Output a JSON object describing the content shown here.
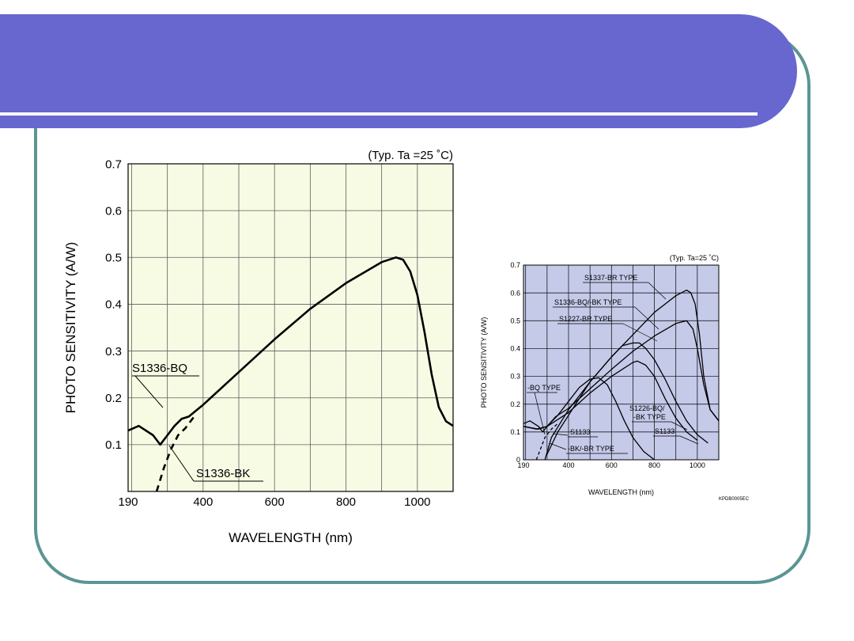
{
  "slide": {
    "title": ""
  },
  "colors": {
    "frame": "#5b9594",
    "band": "#6767cf",
    "left_plot_bg": "#f8fbe4",
    "right_plot_bg": "#c5cae9",
    "curve": "#000000"
  },
  "chart_data": [
    {
      "type": "line",
      "title": "(Typ. Ta =25 ˚C)",
      "xlabel": "WAVELENGTH (nm)",
      "ylabel": "PHOTO SENSITIVITY (A/W)",
      "xlim": [
        190,
        1100
      ],
      "ylim": [
        0,
        0.7
      ],
      "xticks": [
        190,
        400,
        600,
        800,
        1000
      ],
      "yticks": [
        0.1,
        0.2,
        0.3,
        0.4,
        0.5,
        0.6,
        0.7
      ],
      "grid": true,
      "series": [
        {
          "name": "S1336-BQ",
          "style": "solid",
          "x": [
            190,
            220,
            260,
            280,
            300,
            320,
            340,
            360,
            400,
            500,
            600,
            700,
            800,
            900,
            940,
            960,
            980,
            1000,
            1020,
            1040,
            1060,
            1080,
            1100
          ],
          "y": [
            0.13,
            0.14,
            0.12,
            0.1,
            0.12,
            0.14,
            0.155,
            0.16,
            0.185,
            0.255,
            0.325,
            0.39,
            0.445,
            0.49,
            0.5,
            0.495,
            0.47,
            0.42,
            0.34,
            0.25,
            0.18,
            0.15,
            0.14
          ]
        },
        {
          "name": "S1336-BK",
          "style": "dashed",
          "x": [
            270,
            290,
            310,
            330,
            350,
            370,
            380
          ],
          "y": [
            0.0,
            0.05,
            0.09,
            0.12,
            0.135,
            0.155,
            0.165
          ]
        }
      ],
      "annotations": [
        {
          "text": "S1336-BQ",
          "target_x": 300,
          "target_y": 0.125
        },
        {
          "text": "S1336-BK",
          "target_x": 320,
          "target_y": 0.1
        }
      ]
    },
    {
      "type": "line",
      "title": "(Typ. Ta=25 ˚C)",
      "xlabel": "WAVELENGTH (nm)",
      "ylabel": "PHOTO SENSITIVITY (A/W)",
      "xlim": [
        190,
        1100
      ],
      "ylim": [
        0,
        0.7
      ],
      "xticks": [
        190,
        400,
        600,
        800,
        1000
      ],
      "yticks": [
        0,
        0.1,
        0.2,
        0.3,
        0.4,
        0.5,
        0.6,
        0.7
      ],
      "grid": true,
      "footnote": "KPDB0005EC",
      "series": [
        {
          "name": "S1337-BR TYPE",
          "style": "solid",
          "x": [
            290,
            320,
            360,
            400,
            500,
            600,
            700,
            800,
            900,
            950,
            970,
            990,
            1010,
            1030,
            1060,
            1100
          ],
          "y": [
            0.0,
            0.08,
            0.13,
            0.18,
            0.28,
            0.37,
            0.45,
            0.53,
            0.59,
            0.61,
            0.6,
            0.56,
            0.45,
            0.3,
            0.18,
            0.14
          ]
        },
        {
          "name": "S1336-BQ/-BK TYPE",
          "style": "solid",
          "x": [
            190,
            220,
            260,
            280,
            300,
            340,
            400,
            500,
            600,
            700,
            800,
            900,
            950,
            980,
            1000,
            1030,
            1060,
            1100
          ],
          "y": [
            0.13,
            0.14,
            0.12,
            0.1,
            0.12,
            0.155,
            0.185,
            0.255,
            0.325,
            0.39,
            0.445,
            0.49,
            0.5,
            0.47,
            0.4,
            0.27,
            0.18,
            0.14
          ]
        },
        {
          "name": "S1227-BR TYPE",
          "style": "solid",
          "x": [
            300,
            350,
            400,
            500,
            600,
            650,
            700,
            730,
            760,
            800,
            850,
            900,
            950,
            1000,
            1050
          ],
          "y": [
            0.02,
            0.1,
            0.16,
            0.28,
            0.37,
            0.41,
            0.42,
            0.42,
            0.4,
            0.36,
            0.29,
            0.21,
            0.14,
            0.09,
            0.06
          ]
        },
        {
          "name": "S1226-BQ/-BK TYPE",
          "style": "solid",
          "x": [
            190,
            260,
            300,
            400,
            500,
            600,
            700,
            720,
            760,
            800,
            850,
            900,
            950,
            1000
          ],
          "y": [
            0.12,
            0.11,
            0.12,
            0.17,
            0.24,
            0.3,
            0.35,
            0.355,
            0.34,
            0.3,
            0.22,
            0.15,
            0.1,
            0.07
          ]
        },
        {
          "name": "S1133",
          "style": "solid",
          "x": [
            190,
            250,
            300,
            350,
            400,
            450,
            500,
            540,
            580,
            620,
            660,
            700,
            750,
            800
          ],
          "y": [
            0.12,
            0.11,
            0.12,
            0.16,
            0.21,
            0.26,
            0.29,
            0.295,
            0.27,
            0.21,
            0.14,
            0.08,
            0.03,
            0.0
          ]
        },
        {
          "name": "-BK/-BR TYPE",
          "style": "dashed",
          "x": [
            250,
            270,
            290,
            320,
            350
          ],
          "y": [
            0.0,
            0.04,
            0.08,
            0.11,
            0.13
          ]
        }
      ],
      "annotations": [
        {
          "text": "S1337-BR TYPE"
        },
        {
          "text": "S1336-BQ/-BK TYPE"
        },
        {
          "text": "S1227-BR TYPE"
        },
        {
          "text": "-BQ TYPE"
        },
        {
          "text": "S1133"
        },
        {
          "text": "-BK/-BR TYPE"
        },
        {
          "text": "S1226-BQ/"
        },
        {
          "text": "-BK TYPE"
        },
        {
          "text": "S1133"
        }
      ]
    }
  ]
}
